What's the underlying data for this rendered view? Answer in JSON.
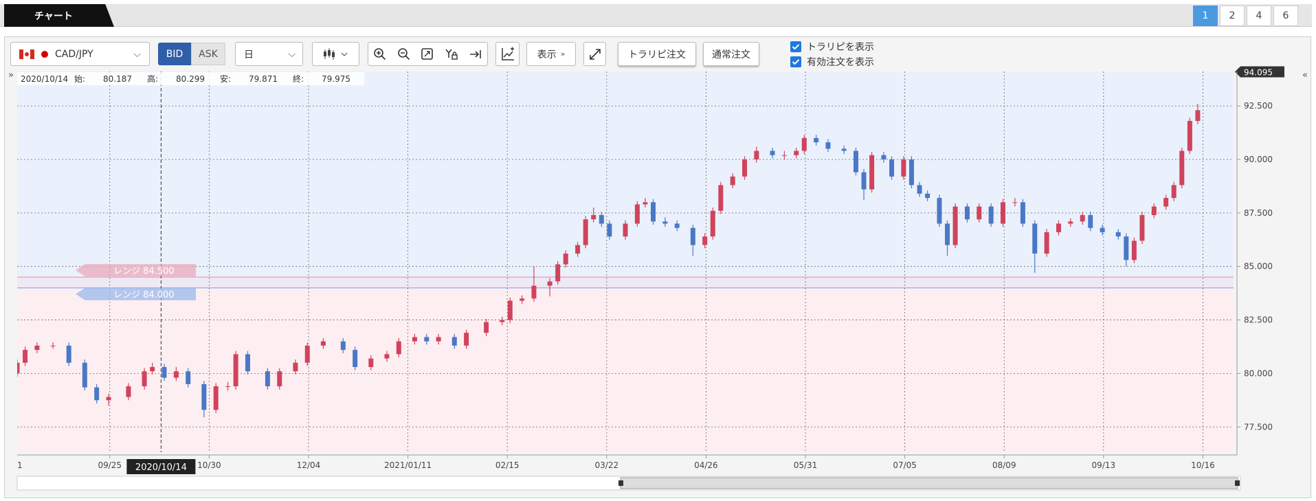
{
  "header": {
    "tab": "チャート",
    "layouts": [
      "1",
      "2",
      "4",
      "6"
    ]
  },
  "toolbar": {
    "pair": "CAD/JPY",
    "bid": "BID",
    "ask": "ASK",
    "period": "日",
    "display": "表示",
    "trarepi_order": "トラリピ注文",
    "normal_order": "通常注文",
    "show_trarepi": "トラリピを表示",
    "show_orders": "有効注文を表示"
  },
  "chart_data": {
    "type": "candlestick",
    "readout": {
      "date": "2020/10/14",
      "open_label": "始:",
      "open": 80.187,
      "high_label": "高:",
      "high": 80.299,
      "low_label": "安:",
      "low": 79.871,
      "close_label": "終:",
      "close": 79.975
    },
    "cursor": {
      "x": 36.2,
      "label": "2020/10/14"
    },
    "price_tag": 94.095,
    "xlim": [
      0,
      306
    ],
    "xticks": [
      {
        "value": -1.7,
        "label": "1"
      },
      {
        "value": 23.3,
        "label": "09/25"
      },
      {
        "value": 48.3,
        "label": "10/30"
      },
      {
        "value": 73.3,
        "label": "12/04"
      },
      {
        "value": 98.3,
        "label": "2021/01/11"
      },
      {
        "value": 123.3,
        "label": "02/15"
      },
      {
        "value": 148.3,
        "label": "03/22"
      },
      {
        "value": 173.3,
        "label": "04/26"
      },
      {
        "value": 198.3,
        "label": "05/31"
      },
      {
        "value": 223.3,
        "label": "07/05"
      },
      {
        "value": 248.3,
        "label": "08/09"
      },
      {
        "value": 273.3,
        "label": "09/13"
      },
      {
        "value": 298.3,
        "label": "10/16"
      }
    ],
    "ylim": [
      76.32,
      94.11
    ],
    "yticks": [
      {
        "value": 77.5,
        "label": "77.500"
      },
      {
        "value": 80,
        "label": "80.000"
      },
      {
        "value": 82.5,
        "label": "82.500"
      },
      {
        "value": 85,
        "label": "85.000"
      },
      {
        "value": 87.5,
        "label": "87.500"
      },
      {
        "value": 90,
        "label": "90.000"
      },
      {
        "value": 92.5,
        "label": "92.500"
      }
    ],
    "grid": true,
    "up_color": "#d0435c",
    "down_color": "#4a78c6",
    "ranges": [
      {
        "value": 84.5,
        "label": "レンジ 84.500",
        "color": "#e9a9bb"
      },
      {
        "value": 84.0,
        "label": "レンジ 84.000",
        "color": "#9bb8ea"
      }
    ],
    "candles": {
      "x": [
        0,
        2,
        5,
        9,
        13,
        17,
        20,
        23,
        28,
        32,
        34,
        37,
        40,
        43,
        47,
        50,
        53,
        55,
        58,
        63,
        66,
        70,
        73,
        77,
        82,
        85,
        89,
        93,
        96,
        100,
        103,
        106,
        110,
        113,
        118,
        122,
        124,
        127,
        130,
        134,
        136,
        138,
        141,
        143,
        145,
        147,
        149,
        153,
        156,
        158,
        160,
        163,
        166,
        170,
        173,
        175,
        177,
        180,
        183,
        186,
        190,
        193,
        196,
        198,
        201,
        204,
        208,
        211,
        213,
        215,
        218,
        220,
        223,
        225,
        227,
        229,
        232,
        234,
        236,
        239,
        242,
        245,
        248,
        251,
        253,
        256,
        259,
        262,
        265,
        268,
        270,
        273,
        277,
        279,
        281,
        283,
        286,
        289,
        291,
        293,
        295,
        297
      ],
      "open": [
        80.0,
        80.5,
        81.1,
        81.3,
        81.3,
        80.5,
        79.35,
        78.75,
        78.9,
        79.4,
        80.1,
        80.3,
        79.8,
        80.1,
        79.5,
        78.3,
        79.4,
        79.4,
        80.9,
        80.1,
        79.4,
        80.1,
        80.5,
        81.3,
        81.5,
        81.1,
        80.3,
        80.7,
        80.9,
        81.5,
        81.7,
        81.5,
        81.7,
        81.3,
        81.9,
        82.4,
        82.5,
        83.4,
        83.5,
        84.1,
        84.3,
        85.1,
        85.6,
        86.0,
        87.2,
        87.4,
        87.0,
        86.4,
        87.0,
        87.9,
        88.0,
        87.1,
        87.0,
        86.8,
        86.0,
        86.4,
        87.6,
        88.8,
        89.2,
        90.0,
        90.4,
        90.2,
        90.2,
        90.4,
        91.0,
        90.8,
        90.5,
        90.4,
        89.4,
        88.6,
        90.2,
        90.0,
        89.2,
        90.0,
        88.8,
        88.4,
        88.2,
        87.0,
        86.0,
        87.8,
        87.2,
        87.8,
        87.0,
        88.0,
        88.0,
        87.0,
        85.6,
        86.6,
        87.0,
        87.1,
        87.4,
        86.8,
        86.6,
        86.4,
        85.3,
        86.2,
        87.4,
        87.8,
        88.2,
        88.8,
        90.4,
        91.8
      ],
      "high": [
        80.65,
        81.25,
        81.45,
        81.45,
        81.45,
        80.65,
        79.5,
        79.05,
        79.55,
        80.25,
        80.5,
        80.45,
        80.3,
        80.25,
        79.65,
        79.55,
        79.6,
        81.05,
        81.05,
        80.25,
        80.25,
        80.65,
        81.45,
        81.65,
        81.65,
        81.25,
        80.85,
        81.05,
        81.65,
        81.85,
        81.85,
        81.85,
        81.85,
        82.05,
        82.55,
        82.65,
        83.55,
        83.65,
        85.0,
        84.45,
        85.25,
        85.75,
        86.15,
        87.35,
        87.75,
        87.55,
        87.15,
        87.15,
        88.05,
        88.2,
        88.15,
        87.3,
        87.15,
        86.95,
        86.55,
        87.75,
        88.95,
        89.35,
        90.15,
        90.6,
        90.55,
        90.4,
        90.55,
        91.15,
        91.15,
        90.95,
        90.65,
        90.55,
        89.55,
        90.35,
        90.35,
        90.15,
        90.15,
        90.15,
        88.95,
        88.55,
        88.35,
        87.15,
        87.95,
        87.95,
        87.95,
        87.95,
        88.15,
        88.2,
        88.15,
        87.15,
        86.75,
        87.15,
        87.25,
        87.55,
        87.55,
        86.95,
        86.75,
        86.55,
        86.35,
        87.55,
        87.95,
        88.35,
        88.95,
        90.55,
        91.95,
        92.6
      ],
      "low": [
        79.85,
        80.35,
        80.95,
        81.15,
        80.35,
        79.2,
        78.6,
        78.5,
        78.75,
        79.25,
        79.95,
        79.65,
        79.65,
        79.35,
        77.95,
        78.15,
        79.2,
        79.25,
        79.95,
        79.25,
        79.25,
        79.95,
        80.35,
        81.15,
        80.95,
        80.15,
        80.15,
        80.55,
        80.75,
        81.35,
        81.35,
        81.35,
        81.15,
        81.15,
        81.75,
        82.25,
        82.35,
        83.25,
        83.35,
        83.6,
        84.15,
        84.95,
        85.45,
        85.85,
        87.05,
        86.85,
        86.25,
        86.25,
        86.85,
        87.75,
        86.95,
        86.85,
        86.65,
        85.5,
        85.85,
        86.25,
        87.45,
        88.65,
        89.05,
        89.85,
        90.05,
        90.0,
        90.05,
        90.25,
        90.65,
        90.35,
        90.25,
        89.25,
        88.1,
        88.45,
        89.85,
        89.05,
        89.05,
        88.65,
        88.25,
        88.05,
        86.85,
        85.5,
        85.85,
        87.05,
        87.05,
        86.85,
        86.85,
        87.8,
        86.85,
        84.7,
        85.45,
        86.45,
        86.85,
        86.95,
        86.65,
        86.45,
        86.25,
        85.0,
        85.15,
        86.05,
        87.25,
        87.65,
        88.05,
        88.65,
        90.25,
        91.65
      ],
      "close": [
        80.5,
        81.1,
        81.3,
        81.3,
        80.5,
        79.35,
        78.75,
        78.9,
        79.4,
        80.1,
        80.3,
        79.8,
        80.1,
        79.5,
        78.3,
        79.4,
        79.4,
        80.9,
        80.1,
        79.4,
        80.1,
        80.5,
        81.3,
        81.5,
        81.1,
        80.3,
        80.7,
        80.9,
        81.5,
        81.7,
        81.5,
        81.7,
        81.3,
        81.9,
        82.4,
        82.5,
        83.4,
        83.5,
        84.1,
        84.3,
        85.1,
        85.6,
        86.0,
        87.2,
        87.4,
        87.0,
        86.4,
        87.0,
        87.9,
        88.0,
        87.1,
        87.0,
        86.8,
        86.0,
        86.4,
        87.6,
        88.8,
        89.2,
        90.0,
        90.4,
        90.2,
        90.2,
        90.4,
        91.0,
        90.8,
        90.5,
        90.4,
        89.4,
        88.6,
        90.2,
        90.0,
        89.2,
        90.0,
        88.8,
        88.4,
        88.2,
        87.0,
        86.0,
        87.8,
        87.2,
        87.8,
        87.0,
        88.0,
        88.0,
        87.0,
        85.6,
        86.6,
        87.0,
        87.1,
        87.4,
        86.8,
        86.6,
        86.4,
        85.3,
        86.2,
        87.4,
        87.8,
        88.2,
        88.8,
        90.4,
        91.8,
        92.3
      ]
    }
  }
}
